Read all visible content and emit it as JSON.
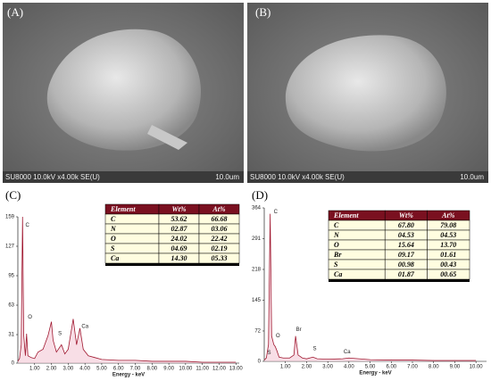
{
  "panels": [
    {
      "label": "(A)",
      "footer": "SU8000 10.0kV x4.00k SE(U)",
      "scale": "10.0um"
    },
    {
      "label": "(B)",
      "footer": "SU8000 10.0kV x4.00k SE(U)",
      "scale": "10.0um"
    }
  ],
  "chart_data": [
    {
      "type": "line",
      "label": "(C)",
      "xlabel": "Energy - keV",
      "color": "#a01830",
      "x": [
        0,
        0.1,
        0.2,
        0.28,
        0.35,
        0.45,
        0.52,
        0.6,
        0.8,
        1.0,
        1.2,
        1.5,
        1.8,
        2.0,
        2.1,
        2.3,
        2.6,
        2.8,
        3.0,
        3.3,
        3.5,
        3.7,
        3.9,
        4.2,
        4.6,
        5,
        6,
        7,
        8,
        9,
        10,
        11,
        12,
        13
      ],
      "values": [
        2,
        5,
        20,
        159,
        30,
        8,
        32,
        8,
        6,
        5,
        12,
        15,
        30,
        45,
        25,
        12,
        20,
        10,
        15,
        48,
        20,
        38,
        15,
        8,
        6,
        4,
        3,
        3,
        2,
        2,
        2,
        1,
        1,
        1
      ],
      "xlim": [
        0,
        13.2
      ],
      "ylim": [
        0,
        159
      ],
      "yticks": [
        0,
        31,
        63,
        95,
        127,
        159
      ],
      "xticks": [
        {
          "value": 1,
          "label": "1.00"
        },
        {
          "value": 2,
          "label": "2.00"
        },
        {
          "value": 3,
          "label": "3.00"
        },
        {
          "value": 4,
          "label": "4.00"
        },
        {
          "value": 5,
          "label": "5.00"
        },
        {
          "value": 6,
          "label": "6.00"
        },
        {
          "value": 7,
          "label": "7.00"
        },
        {
          "value": 8,
          "label": "8.00"
        },
        {
          "value": 9,
          "label": "9.00"
        },
        {
          "value": 10,
          "label": "10.00"
        },
        {
          "value": 11,
          "label": "11.00"
        },
        {
          "value": 12,
          "label": "12.00"
        },
        {
          "value": 13,
          "label": "13.00"
        }
      ],
      "annotations": [
        {
          "text": "C",
          "x": 0.45,
          "y": 150
        },
        {
          "text": "O",
          "x": 0.6,
          "y": 50
        },
        {
          "text": "S",
          "x": 2.4,
          "y": 32
        },
        {
          "text": "Ca",
          "x": 3.8,
          "y": 40
        }
      ],
      "table": {
        "header": [
          "Element",
          "Wt%",
          "At%"
        ],
        "rows": [
          [
            "C",
            "53.62",
            "66.68"
          ],
          [
            "N",
            "02.87",
            "03.06"
          ],
          [
            "O",
            "24.02",
            "22.42"
          ],
          [
            "S",
            "04.69",
            "02.19"
          ],
          [
            "Ca",
            "14.30",
            "05.33"
          ]
        ]
      }
    },
    {
      "type": "line",
      "label": "(D)",
      "xlabel": "Energy - keV",
      "color": "#a01830",
      "x": [
        0,
        0.1,
        0.2,
        0.28,
        0.35,
        0.45,
        0.52,
        0.6,
        0.7,
        0.9,
        1.2,
        1.4,
        1.48,
        1.6,
        1.8,
        2.0,
        2.3,
        2.5,
        3,
        3.7,
        4,
        5,
        6,
        7,
        8,
        9,
        10
      ],
      "values": [
        3,
        8,
        40,
        350,
        60,
        40,
        35,
        25,
        10,
        8,
        8,
        15,
        60,
        15,
        8,
        6,
        10,
        6,
        5,
        6,
        8,
        4,
        3,
        3,
        2,
        2,
        2
      ],
      "xlim": [
        0,
        10.5
      ],
      "ylim": [
        0,
        364
      ],
      "yticks": [
        0,
        72,
        145,
        218,
        291,
        364
      ],
      "xticks": [
        {
          "value": 1,
          "label": "1.00"
        },
        {
          "value": 2,
          "label": "2.00"
        },
        {
          "value": 3,
          "label": "3.00"
        },
        {
          "value": 4,
          "label": "4.00"
        },
        {
          "value": 5,
          "label": "5.00"
        },
        {
          "value": 6,
          "label": "6.00"
        },
        {
          "value": 7,
          "label": "7.00"
        },
        {
          "value": 8,
          "label": "8.00"
        },
        {
          "value": 9,
          "label": "9.00"
        },
        {
          "value": 10,
          "label": "10.00"
        }
      ],
      "annotations": [
        {
          "text": "C",
          "x": 0.45,
          "y": 355
        },
        {
          "text": "O",
          "x": 0.55,
          "y": 60
        },
        {
          "text": "S",
          "x": 0.15,
          "y": 20
        },
        {
          "text": "Br",
          "x": 1.5,
          "y": 75
        },
        {
          "text": "S",
          "x": 2.3,
          "y": 30
        },
        {
          "text": "Ca",
          "x": 3.75,
          "y": 22
        }
      ],
      "table": {
        "header": [
          "Element",
          "Wt%",
          "At%"
        ],
        "rows": [
          [
            "C",
            "67.80",
            "79.08"
          ],
          [
            "N",
            "04.53",
            "04.53"
          ],
          [
            "O",
            "15.64",
            "13.70"
          ],
          [
            "Br",
            "09.17",
            "01.61"
          ],
          [
            "S",
            "00.98",
            "00.43"
          ],
          [
            "Ca",
            "01.87",
            "00.65"
          ]
        ]
      }
    }
  ]
}
